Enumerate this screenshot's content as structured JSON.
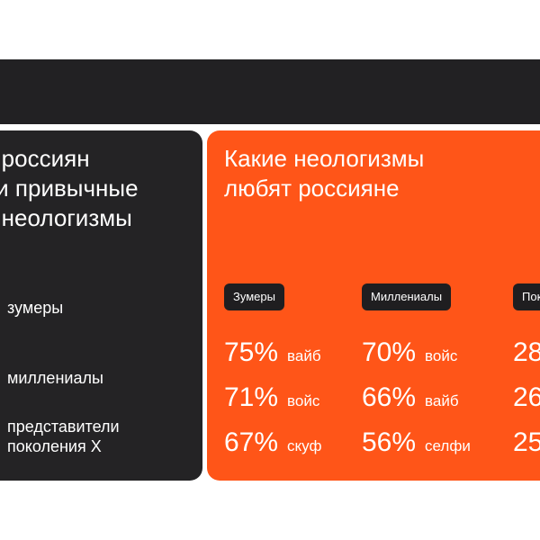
{
  "left_panel": {
    "title": "о россиян\nли привычные\nа неологизмы",
    "items": [
      {
        "label": "зумеры"
      },
      {
        "label": "миллениалы"
      },
      {
        "label": "представители\nпоколения X"
      }
    ]
  },
  "right_panel": {
    "title": "Какие неологизмы\nлюбят россияне",
    "columns": [
      {
        "tag": "Зумеры",
        "stats": [
          {
            "pct": "75%",
            "word": "вайб"
          },
          {
            "pct": "71%",
            "word": "войс"
          },
          {
            "pct": "67%",
            "word": "скуф"
          }
        ]
      },
      {
        "tag": "Миллениалы",
        "stats": [
          {
            "pct": "70%",
            "word": "войс"
          },
          {
            "pct": "66%",
            "word": "вайб"
          },
          {
            "pct": "56%",
            "word": "селфи"
          }
        ]
      },
      {
        "tag": "Пок",
        "stats": [
          {
            "pct": "28",
            "word": ""
          },
          {
            "pct": "26",
            "word": ""
          },
          {
            "pct": "25",
            "word": ""
          }
        ]
      }
    ]
  },
  "colors": {
    "dark": "#242325",
    "accent": "#ff5518",
    "text": "#ffffff"
  }
}
